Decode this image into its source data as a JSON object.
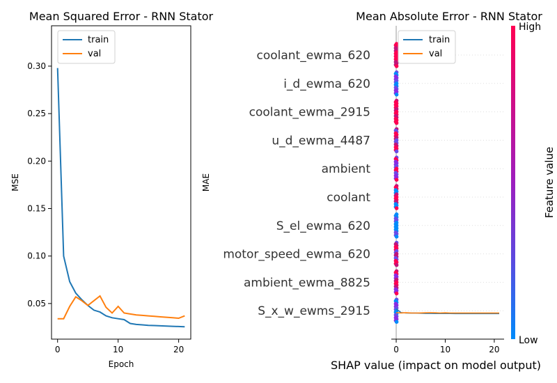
{
  "chart_data": [
    {
      "type": "line",
      "title": "Mean Squared Error - RNN Stator",
      "xlabel": "Epoch",
      "ylabel": "MSE",
      "xlim": [
        -1,
        22
      ],
      "ylim": [
        0.0125,
        0.3425
      ],
      "xticks": [
        0,
        10,
        20
      ],
      "yticks": [
        0.05,
        0.1,
        0.15,
        0.2,
        0.25,
        0.3
      ],
      "ytick_labels": [
        "0.05",
        "0.10",
        "0.15",
        "0.20",
        "0.25",
        "0.30"
      ],
      "legend": {
        "placement": "upper-left"
      },
      "x": [
        0,
        1,
        2,
        3,
        4,
        5,
        6,
        7,
        8,
        9,
        10,
        11,
        12,
        13,
        14,
        15,
        16,
        17,
        18,
        19,
        20,
        21
      ],
      "series": [
        {
          "name": "train",
          "color": "#1f77b4",
          "values": [
            0.298,
            0.1,
            0.073,
            0.061,
            0.054,
            0.048,
            0.043,
            0.041,
            0.037,
            0.035,
            0.034,
            0.033,
            0.029,
            0.028,
            0.0275,
            0.027,
            0.0268,
            0.0265,
            0.0262,
            0.026,
            0.0258,
            0.0255
          ]
        },
        {
          "name": "val",
          "color": "#ff7f0e",
          "values": [
            0.034,
            0.034,
            0.047,
            0.057,
            0.053,
            0.048,
            0.053,
            0.058,
            0.046,
            0.04,
            0.047,
            0.04,
            0.039,
            0.038,
            0.0375,
            0.037,
            0.0365,
            0.036,
            0.0355,
            0.035,
            0.0345,
            0.037
          ]
        }
      ]
    },
    {
      "type": "line",
      "title": "Mean Absolute Error - RNN Stator",
      "xlabel": "SHAP value (impact on model output)",
      "ylabel": "MAE",
      "xlim": [
        -1,
        22
      ],
      "xticks": [
        0,
        10,
        20
      ],
      "legend": {
        "placement": "upper-left"
      },
      "feature_labels": [
        "coolant_ewma_620",
        "i_d_ewma_620",
        "coolant_ewma_2915",
        "u_d_ewma_4487",
        "ambient",
        "coolant",
        "S_el_ewma_620",
        "motor_speed_ewma_620",
        "ambient_ewma_8825",
        "S_x_w_ewms_2915"
      ],
      "colorbar": {
        "label": "Feature value",
        "high": "High",
        "low": "Low",
        "color_high": "#ff0052",
        "color_low": "#008bfb"
      },
      "x": [
        0,
        1,
        2,
        3,
        4,
        5,
        6,
        7,
        8,
        9,
        10,
        11,
        12,
        13,
        14,
        15,
        16,
        17,
        18,
        19,
        20,
        21
      ],
      "series": [
        {
          "name": "train",
          "color": "#1f77b4",
          "values": [
            -0.3,
            -0.74,
            -0.78,
            -0.8,
            -0.8,
            -0.82,
            -0.84,
            -0.84,
            -0.85,
            -0.85,
            -0.85,
            -0.85,
            -0.86,
            -0.86,
            -0.86,
            -0.86,
            -0.86,
            -0.86,
            -0.86,
            -0.86,
            -0.86,
            -0.86
          ]
        },
        {
          "name": "val",
          "color": "#ff7f0e",
          "values": [
            -0.75,
            -0.78,
            -0.76,
            -0.78,
            -0.79,
            -0.78,
            -0.77,
            -0.75,
            -0.77,
            -0.79,
            -0.77,
            -0.79,
            -0.79,
            -0.79,
            -0.79,
            -0.79,
            -0.79,
            -0.79,
            -0.79,
            -0.79,
            -0.79,
            -0.79
          ]
        }
      ]
    }
  ]
}
